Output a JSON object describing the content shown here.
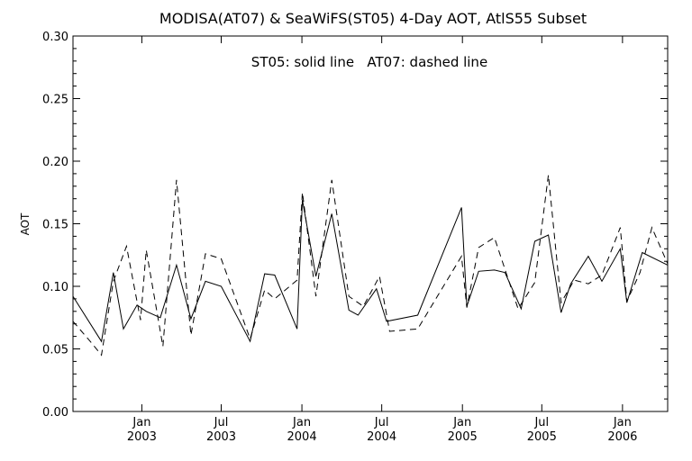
{
  "chart_data": {
    "type": "line",
    "title": "MODISA(AT07) & SeaWiFS(ST05) 4-Day AOT, AtlS55 Subset",
    "annotation": "ST05: solid line   AT07: dashed line",
    "xlabel": "",
    "ylabel": "AOT",
    "ylim": [
      0.0,
      0.3
    ],
    "xlim": [
      "2002-07-28",
      "2006-04-14"
    ],
    "y_ticks": [
      "0.00",
      "0.05",
      "0.10",
      "0.15",
      "0.20",
      "0.25",
      "0.30"
    ],
    "x_ticks": [
      {
        "month": "Jan",
        "year": "2003",
        "date": "2003-01-01"
      },
      {
        "month": "Jul",
        "year": "2003",
        "date": "2003-07-01"
      },
      {
        "month": "Jan",
        "year": "2004",
        "date": "2004-01-01"
      },
      {
        "month": "Jul",
        "year": "2004",
        "date": "2004-07-01"
      },
      {
        "month": "Jan",
        "year": "2005",
        "date": "2005-01-01"
      },
      {
        "month": "Jul",
        "year": "2005",
        "date": "2005-07-01"
      },
      {
        "month": "Jan",
        "year": "2006",
        "date": "2006-01-01"
      }
    ],
    "grid": false,
    "series": [
      {
        "name": "ST05",
        "style": "solid",
        "color": "#000000",
        "points": [
          {
            "x": "2002-07-28",
            "y": 0.092
          },
          {
            "x": "2002-10-01",
            "y": 0.056
          },
          {
            "x": "2002-10-28",
            "y": 0.111
          },
          {
            "x": "2002-11-20",
            "y": 0.066
          },
          {
            "x": "2002-12-21",
            "y": 0.085
          },
          {
            "x": "2003-01-11",
            "y": 0.08
          },
          {
            "x": "2003-02-12",
            "y": 0.075
          },
          {
            "x": "2003-03-21",
            "y": 0.117
          },
          {
            "x": "2003-04-23",
            "y": 0.074
          },
          {
            "x": "2003-05-26",
            "y": 0.104
          },
          {
            "x": "2003-07-01",
            "y": 0.1
          },
          {
            "x": "2003-09-05",
            "y": 0.056
          },
          {
            "x": "2003-10-08",
            "y": 0.11
          },
          {
            "x": "2003-10-31",
            "y": 0.109
          },
          {
            "x": "2003-12-21",
            "y": 0.066
          },
          {
            "x": "2004-01-02",
            "y": 0.169
          },
          {
            "x": "2004-02-02",
            "y": 0.108
          },
          {
            "x": "2004-03-09",
            "y": 0.158
          },
          {
            "x": "2004-04-17",
            "y": 0.081
          },
          {
            "x": "2004-05-08",
            "y": 0.077
          },
          {
            "x": "2004-06-19",
            "y": 0.098
          },
          {
            "x": "2004-07-12",
            "y": 0.072
          },
          {
            "x": "2004-09-21",
            "y": 0.077
          },
          {
            "x": "2004-12-30",
            "y": 0.163
          },
          {
            "x": "2005-01-11",
            "y": 0.084
          },
          {
            "x": "2005-02-07",
            "y": 0.112
          },
          {
            "x": "2005-03-15",
            "y": 0.113
          },
          {
            "x": "2005-04-08",
            "y": 0.111
          },
          {
            "x": "2005-05-15",
            "y": 0.082
          },
          {
            "x": "2005-06-15",
            "y": 0.136
          },
          {
            "x": "2005-07-16",
            "y": 0.141
          },
          {
            "x": "2005-08-14",
            "y": 0.079
          },
          {
            "x": "2005-09-05",
            "y": 0.102
          },
          {
            "x": "2005-10-15",
            "y": 0.124
          },
          {
            "x": "2005-11-15",
            "y": 0.104
          },
          {
            "x": "2005-12-27",
            "y": 0.13
          },
          {
            "x": "2006-01-11",
            "y": 0.087
          },
          {
            "x": "2006-02-15",
            "y": 0.127
          },
          {
            "x": "2006-04-14",
            "y": 0.117
          }
        ]
      },
      {
        "name": "AT07",
        "style": "dashed",
        "color": "#000000",
        "points": [
          {
            "x": "2002-07-28",
            "y": 0.072
          },
          {
            "x": "2002-09-08",
            "y": 0.055
          },
          {
            "x": "2002-10-01",
            "y": 0.045
          },
          {
            "x": "2002-10-28",
            "y": 0.104
          },
          {
            "x": "2002-11-27",
            "y": 0.132
          },
          {
            "x": "2002-12-29",
            "y": 0.073
          },
          {
            "x": "2003-01-11",
            "y": 0.129
          },
          {
            "x": "2003-02-18",
            "y": 0.052
          },
          {
            "x": "2003-03-21",
            "y": 0.185
          },
          {
            "x": "2003-04-23",
            "y": 0.061
          },
          {
            "x": "2003-05-26",
            "y": 0.126
          },
          {
            "x": "2003-07-01",
            "y": 0.122
          },
          {
            "x": "2003-09-05",
            "y": 0.058
          },
          {
            "x": "2003-10-08",
            "y": 0.097
          },
          {
            "x": "2003-10-31",
            "y": 0.09
          },
          {
            "x": "2003-12-21",
            "y": 0.105
          },
          {
            "x": "2004-01-02",
            "y": 0.175
          },
          {
            "x": "2004-02-02",
            "y": 0.092
          },
          {
            "x": "2004-03-09",
            "y": 0.185
          },
          {
            "x": "2004-04-17",
            "y": 0.092
          },
          {
            "x": "2004-05-20",
            "y": 0.084
          },
          {
            "x": "2004-06-26",
            "y": 0.108
          },
          {
            "x": "2004-07-19",
            "y": 0.064
          },
          {
            "x": "2004-09-21",
            "y": 0.066
          },
          {
            "x": "2004-12-30",
            "y": 0.124
          },
          {
            "x": "2005-01-11",
            "y": 0.083
          },
          {
            "x": "2005-02-07",
            "y": 0.131
          },
          {
            "x": "2005-03-15",
            "y": 0.139
          },
          {
            "x": "2005-05-08",
            "y": 0.082
          },
          {
            "x": "2005-06-15",
            "y": 0.103
          },
          {
            "x": "2005-07-16",
            "y": 0.189
          },
          {
            "x": "2005-08-14",
            "y": 0.087
          },
          {
            "x": "2005-09-13",
            "y": 0.105
          },
          {
            "x": "2005-10-15",
            "y": 0.102
          },
          {
            "x": "2005-11-15",
            "y": 0.109
          },
          {
            "x": "2005-12-27",
            "y": 0.147
          },
          {
            "x": "2006-01-11",
            "y": 0.088
          },
          {
            "x": "2006-02-10",
            "y": 0.111
          },
          {
            "x": "2006-03-09",
            "y": 0.147
          },
          {
            "x": "2006-04-14",
            "y": 0.118
          }
        ]
      }
    ]
  }
}
